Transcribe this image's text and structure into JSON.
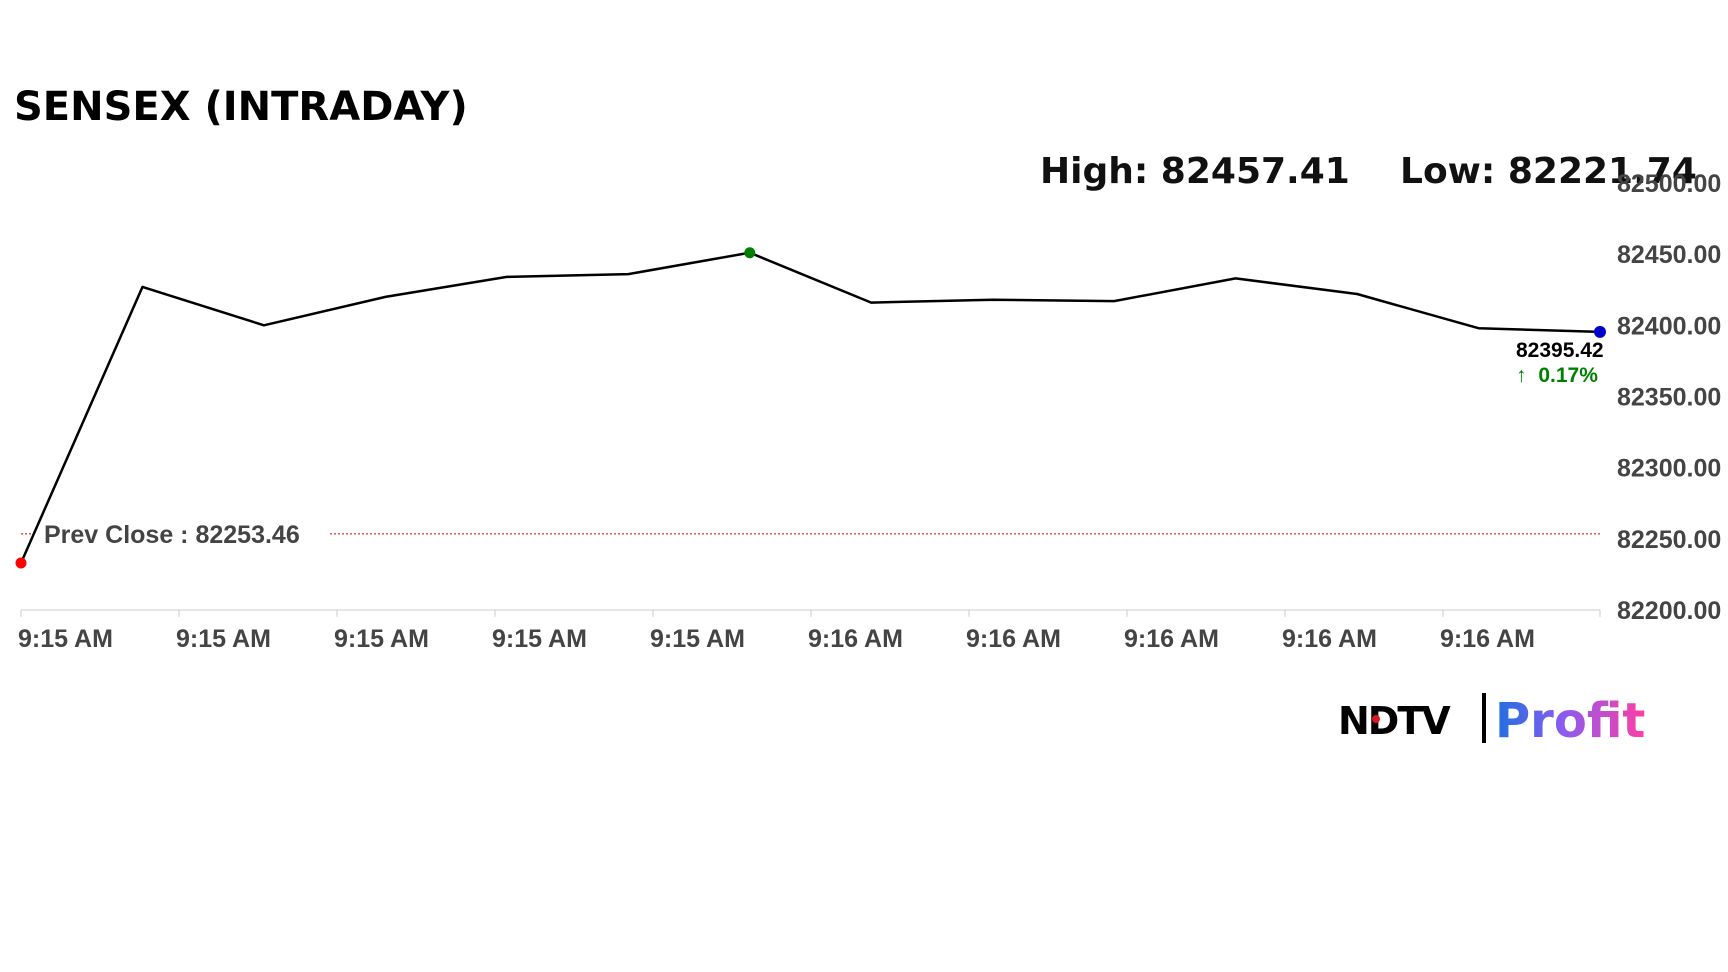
{
  "chart_data": {
    "type": "line",
    "title": "SENSEX (INTRADAY)",
    "high_label": "High: 82457.41",
    "low_label": "Low: 82221.74",
    "x_tick_labels": [
      "9:15 AM",
      "9:15 AM",
      "9:15 AM",
      "9:15 AM",
      "9:15 AM",
      "9:16 AM",
      "9:16 AM",
      "9:16 AM",
      "9:16 AM",
      "9:16 AM"
    ],
    "y_tick_labels": [
      "82500.00",
      "82450.00",
      "82400.00",
      "82350.00",
      "82300.00",
      "82250.00",
      "82200.00"
    ],
    "ylim": [
      82200,
      82500
    ],
    "series": [
      {
        "values": [
          82233,
          82427,
          82400,
          82420,
          82434,
          82436,
          82451,
          82416,
          82418,
          82417,
          82433,
          82422,
          82398,
          82395.42
        ]
      }
    ],
    "prev_close": 82253.46,
    "prev_close_label": "Prev Close : 82253.46",
    "last_value_label": "82395.42",
    "change_label": "0.17%",
    "change_arrow": "↑",
    "colors": {
      "line": "#000000",
      "start_marker": "#ff0000",
      "high_marker": "#008000",
      "last_marker": "#0000cc",
      "prev_close_line": "#cc0000",
      "change_text": "#008000",
      "axis": "#cccccc"
    },
    "grid": false
  },
  "brand": {
    "left": "NDTV",
    "right": "Profit"
  }
}
